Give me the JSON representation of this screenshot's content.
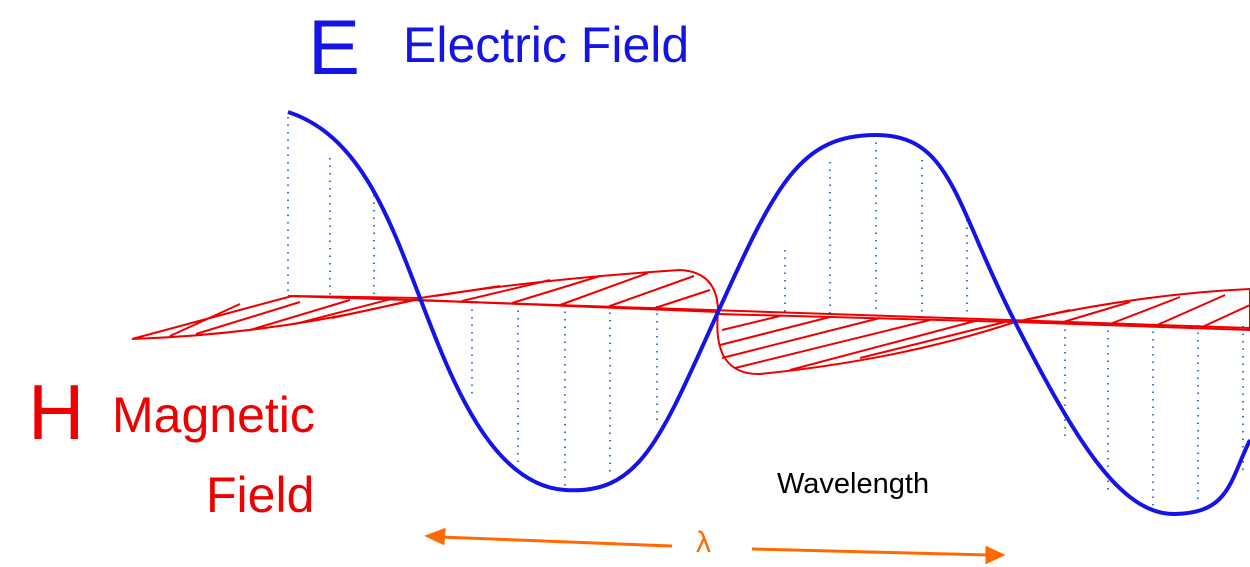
{
  "electric": {
    "symbol": "E",
    "label": "Electric Field",
    "color": "#1414e6"
  },
  "magnetic": {
    "symbol": "H",
    "label_line1": "Magnetic",
    "label_line2": "Field",
    "color": "#ee0000"
  },
  "wavelength": {
    "label": "Wavelength",
    "symbol": "λ",
    "arrow_color": "#ff6a00"
  },
  "style": {
    "dotted_line_color": "#3a7bd5"
  }
}
